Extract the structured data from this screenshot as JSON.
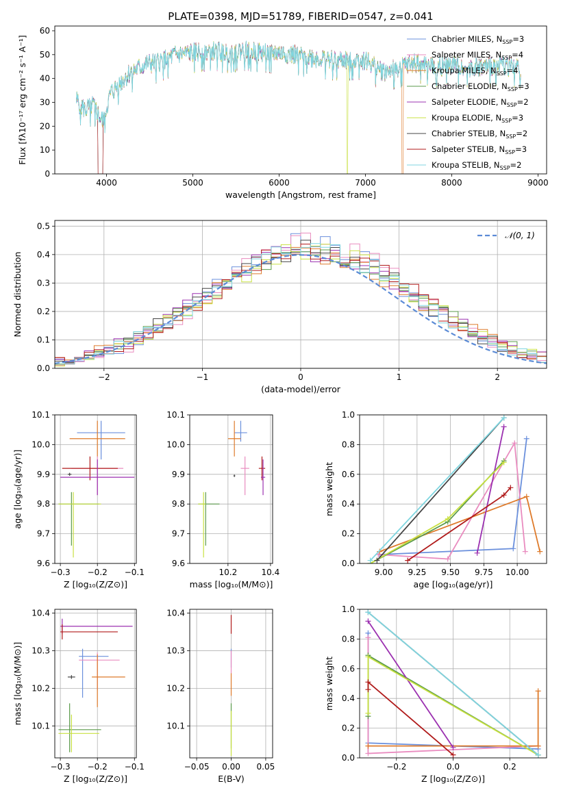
{
  "figure_title": "PLATE=0398, MJD=51789, FIBERID=0547, z=0.041",
  "colors": {
    "Chabrier MILES": "#6a8fdc",
    "Salpeter MILES": "#e98bbf",
    "Kroupa MILES": "#de7a2a",
    "Chabrier ELODIE": "#5a9a4a",
    "Salpeter ELODIE": "#9b30b0",
    "Kroupa ELODIE": "#c8e040",
    "Chabrier STELIB": "#444444",
    "Salpeter STELIB": "#b01a1a",
    "Kroupa STELIB": "#7fd6e0"
  },
  "chart_data": [
    {
      "id": "spectrum",
      "type": "line",
      "xlabel": "wavelength [Angstrom, rest frame]",
      "ylabel": "Flux [fλ10⁻¹⁷ erg cm⁻² s⁻¹ A⁻¹]",
      "xlim": [
        3400,
        9100
      ],
      "ylim": [
        0,
        62
      ],
      "xticks": [
        4000,
        5000,
        6000,
        7000,
        8000,
        9000
      ],
      "yticks": [
        0,
        10,
        20,
        30,
        40,
        50,
        60
      ],
      "legend_position": "top-right",
      "legend": [
        {
          "name": "Chabrier MILES",
          "label": "Chabrier MILES, N",
          "sub": "SSP",
          "suffix": "=3"
        },
        {
          "name": "Salpeter MILES",
          "label": "Salpeter MILES, N",
          "sub": "SSP",
          "suffix": "=4"
        },
        {
          "name": "Kroupa MILES",
          "label": "Kroupa MILES, N",
          "sub": "SSP",
          "suffix": "=4"
        },
        {
          "name": "Chabrier ELODIE",
          "label": "Chabrier ELODIE, N",
          "sub": "SSP",
          "suffix": "=3"
        },
        {
          "name": "Salpeter ELODIE",
          "label": "Salpeter ELODIE, N",
          "sub": "SSP",
          "suffix": "=2"
        },
        {
          "name": "Kroupa ELODIE",
          "label": "Kroupa ELODIE, N",
          "sub": "SSP",
          "suffix": "=3"
        },
        {
          "name": "Chabrier STELIB",
          "label": "Chabrier STELIB, N",
          "sub": "SSP",
          "suffix": "=2"
        },
        {
          "name": "Salpeter STELIB",
          "label": "Salpeter STELIB, N",
          "sub": "SSP",
          "suffix": "=3"
        },
        {
          "name": "Kroupa STELIB",
          "label": "Kroupa STELIB, N",
          "sub": "SSP",
          "suffix": "=2"
        }
      ],
      "continuum_x": [
        3650,
        3750,
        3850,
        3950,
        4050,
        4150,
        4250,
        4350,
        4450,
        4600,
        4800,
        5000,
        5200,
        5400,
        5600,
        5800,
        6000,
        6200,
        6400,
        6600,
        6800,
        7000,
        7200,
        7400,
        7600,
        7800,
        8000,
        8200,
        8400,
        8600,
        8800
      ],
      "continuum_y": [
        31,
        27,
        29,
        22,
        34,
        38,
        42,
        44,
        46,
        47,
        50,
        51,
        52,
        51,
        52,
        51,
        51,
        50,
        49,
        48,
        48,
        48,
        43,
        45,
        47,
        45,
        46,
        45,
        45,
        46,
        44
      ],
      "drops": [
        {
          "x": 3930,
          "y": 0
        },
        {
          "x": 6790,
          "y": 0
        },
        {
          "x": 7420,
          "y": 0
        }
      ]
    },
    {
      "id": "residuals",
      "type": "line",
      "xlabel": "(data-model)/error",
      "ylabel": "Normed distribution",
      "xlim": [
        -2.5,
        2.5
      ],
      "ylim": [
        0,
        0.52
      ],
      "xticks": [
        -2,
        -1,
        0,
        1,
        2
      ],
      "yticks": [
        0.0,
        0.1,
        0.2,
        0.3,
        0.4,
        0.5
      ],
      "grid": true,
      "legend_position": "top-right",
      "legend_label": "𝒩(0, 1)",
      "normal_curve": {
        "mean": 0,
        "sigma": 1
      }
    },
    {
      "id": "age-vs-Z",
      "type": "scatter",
      "xlabel": "Z [log₁₀(Z/Z⊙)]",
      "ylabel": "age  [log₁₀(age/yr)]",
      "xlim": [
        -0.315,
        -0.095
      ],
      "ylim": [
        9.6,
        10.1
      ],
      "xticks": [
        -0.3,
        -0.2,
        -0.1
      ],
      "yticks": [
        9.6,
        9.7,
        9.8,
        9.9,
        10.0,
        10.1
      ],
      "grid": true,
      "points": [
        {
          "name": "Chabrier MILES",
          "x": -0.19,
          "xerr": [
            0.065,
            0.065
          ],
          "y": 10.04,
          "yerr": [
            0.09,
            0.04
          ]
        },
        {
          "name": "Kroupa MILES",
          "x": -0.2,
          "xerr": [
            0.075,
            0.075
          ],
          "y": 10.02,
          "yerr": [
            0.06,
            0.06
          ]
        },
        {
          "name": "Salpeter MILES",
          "x": -0.2,
          "xerr": [
            0.07,
            0.07
          ],
          "y": 9.92,
          "yerr": [
            0.09,
            0.04
          ]
        },
        {
          "name": "Salpeter STELIB",
          "x": -0.22,
          "xerr": [
            0.075,
            0.075
          ],
          "y": 9.92,
          "yerr": [
            0.04,
            0.04
          ]
        },
        {
          "name": "Salpeter ELODIE",
          "x": -0.2,
          "xerr": [
            0.1,
            0.1
          ],
          "y": 9.89,
          "yerr": [
            0.06,
            0.06
          ]
        },
        {
          "name": "Chabrier STELIB",
          "x": -0.275,
          "xerr": [
            0.005,
            0.005
          ],
          "y": 9.9,
          "yerr": [
            0.005,
            0.005
          ]
        },
        {
          "name": "Chabrier ELODIE",
          "x": -0.27,
          "xerr": [
            0.035,
            0.075
          ],
          "y": 9.8,
          "yerr": [
            0.14,
            0.04
          ]
        },
        {
          "name": "Kroupa ELODIE",
          "x": -0.265,
          "xerr": [
            0.04,
            0.075
          ],
          "y": 9.8,
          "yerr": [
            0.18,
            0.04
          ]
        }
      ]
    },
    {
      "id": "age-vs-mass",
      "type": "scatter",
      "xlabel": "mass [log₁₀(M/M⊙)]",
      "ylabel": "",
      "xlim": [
        10.02,
        10.41
      ],
      "ylim": [
        9.6,
        10.1
      ],
      "xticks": [
        10.2,
        10.4
      ],
      "yticks": [
        9.6,
        9.7,
        9.8,
        9.9,
        10.0,
        10.1
      ],
      "grid": true,
      "points": [
        {
          "name": "Chabrier MILES",
          "x": 10.26,
          "xerr": [
            0.03,
            0.03
          ],
          "y": 10.04,
          "yerr": [
            0.03,
            0.04
          ]
        },
        {
          "name": "Kroupa MILES",
          "x": 10.23,
          "xerr": [
            0.03,
            0.03
          ],
          "y": 10.02,
          "yerr": [
            0.06,
            0.06
          ]
        },
        {
          "name": "Salpeter MILES",
          "x": 10.28,
          "xerr": [
            0.02,
            0.02
          ],
          "y": 9.92,
          "yerr": [
            0.09,
            0.04
          ]
        },
        {
          "name": "Salpeter STELIB",
          "x": 10.36,
          "xerr": [
            0.015,
            0.015
          ],
          "y": 9.92,
          "yerr": [
            0.04,
            0.04
          ]
        },
        {
          "name": "Salpeter ELODIE",
          "x": 10.365,
          "xerr": [
            0.01,
            0.01
          ],
          "y": 9.89,
          "yerr": [
            0.06,
            0.06
          ]
        },
        {
          "name": "Chabrier STELIB",
          "x": 10.23,
          "xerr": [
            0.004,
            0.004
          ],
          "y": 9.895,
          "yerr": [
            0.004,
            0.004
          ]
        },
        {
          "name": "Chabrier ELODIE",
          "x": 10.095,
          "xerr": [
            0.035,
            0.065
          ],
          "y": 9.8,
          "yerr": [
            0.14,
            0.04
          ]
        },
        {
          "name": "Kroupa ELODIE",
          "x": 10.085,
          "xerr": [
            0.025,
            0.01
          ],
          "y": 9.8,
          "yerr": [
            0.18,
            0.04
          ]
        }
      ]
    },
    {
      "id": "weight-vs-age",
      "type": "line",
      "xlabel": "age  [log₁₀(age/yr)]",
      "ylabel": "mass weight",
      "xlim": [
        8.82,
        10.22
      ],
      "ylim": [
        0,
        1.0
      ],
      "xticks": [
        9.0,
        9.25,
        9.5,
        9.75,
        10.0
      ],
      "yticks": [
        0.0,
        0.2,
        0.4,
        0.6,
        0.8,
        1.0
      ],
      "grid": true,
      "series": [
        {
          "name": "Chabrier MILES",
          "x": [
            8.97,
            9.97,
            10.07
          ],
          "y": [
            0.06,
            0.1,
            0.84
          ]
        },
        {
          "name": "Salpeter MILES",
          "x": [
            8.96,
            9.48,
            9.98,
            10.06
          ],
          "y": [
            0.06,
            0.03,
            0.81,
            0.08
          ]
        },
        {
          "name": "Kroupa MILES",
          "x": [
            8.97,
            10.07,
            10.17
          ],
          "y": [
            0.08,
            0.45,
            0.08
          ]
        },
        {
          "name": "Chabrier ELODIE",
          "x": [
            8.9,
            9.48,
            9.9
          ],
          "y": [
            0.0,
            0.28,
            0.69
          ]
        },
        {
          "name": "Salpeter ELODIE",
          "x": [
            9.7,
            9.9
          ],
          "y": [
            0.07,
            0.92
          ]
        },
        {
          "name": "Kroupa ELODIE",
          "x": [
            8.9,
            9.48,
            9.9
          ],
          "y": [
            0.0,
            0.3,
            0.68
          ]
        },
        {
          "name": "Chabrier STELIB",
          "x": [
            8.95,
            9.9
          ],
          "y": [
            0.02,
            0.98
          ]
        },
        {
          "name": "Salpeter STELIB",
          "x": [
            9.18,
            9.9,
            9.95
          ],
          "y": [
            0.02,
            0.46,
            0.51
          ]
        },
        {
          "name": "Kroupa STELIB",
          "x": [
            8.9,
            9.9
          ],
          "y": [
            0.02,
            0.98
          ]
        }
      ]
    },
    {
      "id": "mass-vs-Z",
      "type": "scatter",
      "xlabel": "Z [log₁₀(Z/Z⊙)]",
      "ylabel": "mass [log₁₀(M/M⊙)]",
      "xlim": [
        -0.315,
        -0.095
      ],
      "ylim": [
        10.015,
        10.41
      ],
      "xticks": [
        -0.3,
        -0.2,
        -0.1
      ],
      "yticks": [
        10.1,
        10.2,
        10.3,
        10.4
      ],
      "grid": true,
      "points": [
        {
          "name": "Salpeter ELODIE",
          "x": -0.295,
          "xerr": [
            0.005,
            0.19
          ],
          "y": 10.365,
          "yerr": [
            0.02,
            0.02
          ]
        },
        {
          "name": "Salpeter STELIB",
          "x": -0.295,
          "xerr": [
            0.005,
            0.15
          ],
          "y": 10.35,
          "yerr": [
            0.02,
            0.02
          ]
        },
        {
          "name": "Chabrier MILES",
          "x": -0.24,
          "xerr": [
            0.01,
            0.07
          ],
          "y": 10.285,
          "yerr": [
            0.11,
            0.02
          ]
        },
        {
          "name": "Salpeter MILES",
          "x": -0.2,
          "xerr": [
            0.05,
            0.06
          ],
          "y": 10.275,
          "yerr": [
            0.08,
            0.02
          ]
        },
        {
          "name": "Kroupa MILES",
          "x": -0.2,
          "xerr": [
            0.015,
            0.075
          ],
          "y": 10.23,
          "yerr": [
            0.08,
            0.06
          ]
        },
        {
          "name": "Chabrier STELIB",
          "x": -0.27,
          "xerr": [
            0.01,
            0.01
          ],
          "y": 10.23,
          "yerr": [
            0.005,
            0.005
          ]
        },
        {
          "name": "Chabrier ELODIE",
          "x": -0.275,
          "xerr": [
            0.03,
            0.085
          ],
          "y": 10.09,
          "yerr": [
            0.06,
            0.07
          ]
        },
        {
          "name": "Kroupa ELODIE",
          "x": -0.27,
          "xerr": [
            0.035,
            0.075
          ],
          "y": 10.08,
          "yerr": [
            0.05,
            0.05
          ]
        }
      ]
    },
    {
      "id": "mass-vs-ebv",
      "type": "scatter",
      "xlabel": "E(B-V)",
      "ylabel": "",
      "xlim": [
        -0.06,
        0.06
      ],
      "ylim": [
        10.015,
        10.41
      ],
      "xticks": [
        -0.05,
        0.0,
        0.05
      ],
      "yticks": [
        10.1,
        10.2,
        10.3,
        10.4
      ],
      "grid": true,
      "points": [
        {
          "name": "Salpeter STELIB",
          "x": 0.0,
          "xerr": [
            0,
            0
          ],
          "y": 10.37,
          "yerr": [
            0.025,
            0.025
          ]
        },
        {
          "name": "Chabrier MILES",
          "x": 0.0,
          "xerr": [
            0,
            0
          ],
          "y": 10.28,
          "yerr": [
            0.025,
            0.025
          ]
        },
        {
          "name": "Salpeter MILES",
          "x": 0.0,
          "xerr": [
            0,
            0
          ],
          "y": 10.27,
          "yerr": [
            0.03,
            0.03
          ]
        },
        {
          "name": "Kroupa MILES",
          "x": 0.0,
          "xerr": [
            0,
            0
          ],
          "y": 10.21,
          "yerr": [
            0.03,
            0.03
          ]
        },
        {
          "name": "Chabrier ELODIE",
          "x": 0.0,
          "xerr": [
            0,
            0
          ],
          "y": 10.1,
          "yerr": [
            0.06,
            0.06
          ]
        },
        {
          "name": "Kroupa ELODIE",
          "x": 0.0,
          "xerr": [
            0,
            0
          ],
          "y": 10.08,
          "yerr": [
            0.06,
            0.06
          ]
        }
      ]
    },
    {
      "id": "weight-vs-Z",
      "type": "line",
      "xlabel": "Z [log₁₀(Z/Z⊙)]",
      "ylabel": "mass weight",
      "xlim": [
        -0.33,
        0.33
      ],
      "ylim": [
        0,
        1.0
      ],
      "xticks": [
        -0.2,
        0.0,
        0.2
      ],
      "yticks": [
        0.0,
        0.2,
        0.4,
        0.6,
        0.8,
        1.0
      ],
      "grid": true,
      "series": [
        {
          "name": "Chabrier MILES",
          "x": [
            -0.3,
            -0.3,
            0.3
          ],
          "y": [
            0.84,
            0.1,
            0.06
          ]
        },
        {
          "name": "Salpeter MILES",
          "x": [
            -0.3,
            -0.3,
            0.3
          ],
          "y": [
            0.81,
            0.03,
            0.08
          ]
        },
        {
          "name": "Kroupa MILES",
          "x": [
            -0.3,
            0.3,
            0.3
          ],
          "y": [
            0.08,
            0.08,
            0.45
          ]
        },
        {
          "name": "Chabrier ELODIE",
          "x": [
            -0.3,
            -0.3,
            0.3
          ],
          "y": [
            0.28,
            0.69,
            0.02
          ]
        },
        {
          "name": "Salpeter ELODIE",
          "x": [
            -0.3,
            0.0
          ],
          "y": [
            0.92,
            0.07
          ]
        },
        {
          "name": "Kroupa ELODIE",
          "x": [
            -0.3,
            -0.3,
            0.3
          ],
          "y": [
            0.3,
            0.68,
            0.02
          ]
        },
        {
          "name": "Chabrier STELIB",
          "x": [
            -0.3,
            0.3
          ],
          "y": [
            0.98,
            0.02
          ]
        },
        {
          "name": "Salpeter STELIB",
          "x": [
            -0.3,
            -0.3,
            0.0
          ],
          "y": [
            0.46,
            0.51,
            0.02
          ]
        },
        {
          "name": "Kroupa STELIB",
          "x": [
            -0.3,
            0.3
          ],
          "y": [
            0.98,
            0.02
          ]
        }
      ]
    }
  ]
}
